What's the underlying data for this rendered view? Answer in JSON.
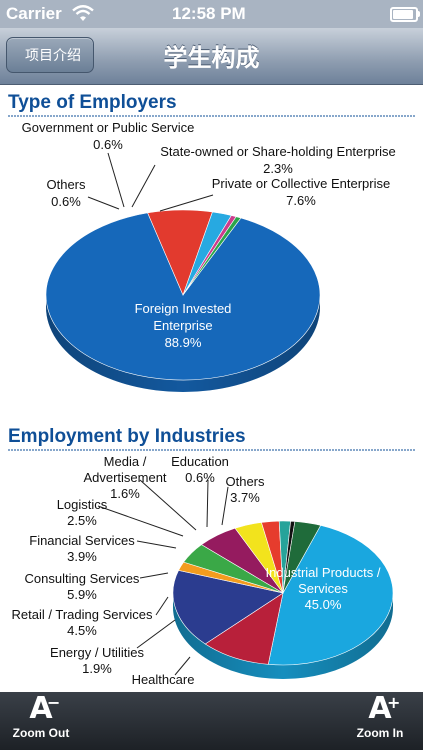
{
  "status_bar": {
    "carrier": "Carrier",
    "time": "12:58 PM"
  },
  "nav": {
    "back_label": "项目介绍",
    "title": "学生构成"
  },
  "toolbar": {
    "zoom_out_label": "Zoom Out",
    "zoom_in_label": "Zoom In"
  },
  "colors": {
    "accent_blue": "#0f4f97",
    "nav_bar": "#8e9db0"
  },
  "chart_data": [
    {
      "type": "pie",
      "title": "Type of Employers",
      "slices": [
        {
          "label": "Foreign Invested Enterprise",
          "value": 88.9,
          "value_label": "88.9%",
          "color": "#1668ba"
        },
        {
          "label": "Private or Collective Enterprise",
          "value": 7.6,
          "value_label": "7.6%",
          "color": "#e23a2e"
        },
        {
          "label": "State-owned or Share-holding Enterprise",
          "value": 2.3,
          "value_label": "2.3%",
          "color": "#27a9e1"
        },
        {
          "label": "Government or Public Service",
          "value": 0.6,
          "value_label": "0.6%",
          "color": "#cc3b8c"
        },
        {
          "label": "Others",
          "value": 0.6,
          "value_label": "0.6%",
          "color": "#2aa54a"
        }
      ]
    },
    {
      "type": "pie",
      "title": "Employment by Industries",
      "slices": [
        {
          "label": "Industrial Products / Services",
          "value": 45.0,
          "value_label": "45.0%",
          "color": "#1aa7df"
        },
        {
          "label": "Healthcare",
          "value": 0,
          "value_label": "",
          "color": "#b8203a"
        },
        {
          "label": "",
          "value": 0,
          "value_label": "",
          "color": "#2b3c8f"
        },
        {
          "label": "Energy / Utilities",
          "value": 1.9,
          "value_label": "1.9%",
          "color": "#f39c1e"
        },
        {
          "label": "Retail / Trading Services",
          "value": 4.5,
          "value_label": "4.5%",
          "color": "#3aa847"
        },
        {
          "label": "Consulting Services",
          "value": 5.9,
          "value_label": "5.9%",
          "color": "#951b5f"
        },
        {
          "label": "Financial Services",
          "value": 3.9,
          "value_label": "3.9%",
          "color": "#f2e31d"
        },
        {
          "label": "Logistics",
          "value": 2.5,
          "value_label": "2.5%",
          "color": "#e63c2d"
        },
        {
          "label": "Media / Advertisement",
          "value": 1.6,
          "value_label": "1.6%",
          "color": "#26a39a"
        },
        {
          "label": "Education",
          "value": 0.6,
          "value_label": "0.6%",
          "color": "#111111"
        },
        {
          "label": "Others",
          "value": 3.7,
          "value_label": "3.7%",
          "color": "#1f6b3a"
        }
      ]
    }
  ]
}
